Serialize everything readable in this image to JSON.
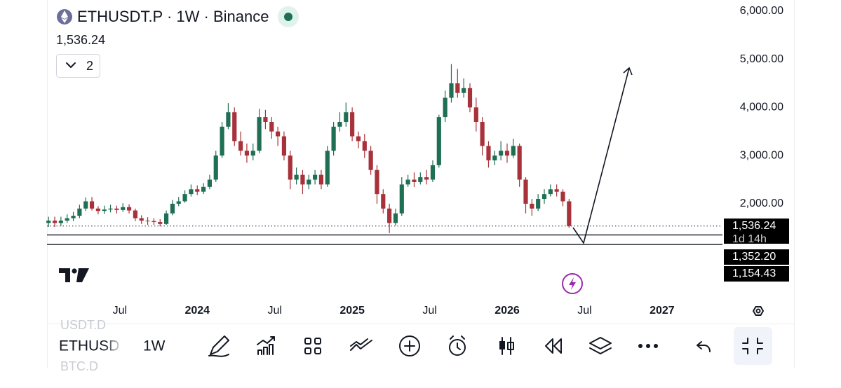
{
  "header": {
    "symbol": "ETHUSDT.P · 1W · Binance",
    "last_price": "1,536.24",
    "indicator_count": "2"
  },
  "chart_data": {
    "type": "candlestick",
    "x": [
      2023.04,
      2023.08,
      2023.12,
      2023.16,
      2023.2,
      2023.24,
      2023.28,
      2023.32,
      2023.36,
      2023.4,
      2023.44,
      2023.48,
      2023.52,
      2023.56,
      2023.6,
      2023.64,
      2023.68,
      2023.72,
      2023.76,
      2023.8,
      2023.84,
      2023.88,
      2023.92,
      2023.96,
      2024,
      2024.04,
      2024.08,
      2024.12,
      2024.16,
      2024.2,
      2024.24,
      2024.28,
      2024.32,
      2024.36,
      2024.4,
      2024.44,
      2024.48,
      2024.52,
      2024.56,
      2024.6,
      2024.64,
      2024.68,
      2024.72,
      2024.76,
      2024.8,
      2024.84,
      2024.88,
      2024.92,
      2024.96,
      2025,
      2025.04,
      2025.08,
      2025.12,
      2025.16,
      2025.2,
      2025.24,
      2025.28,
      2025.32,
      2025.36,
      2025.4,
      2025.44,
      2025.48,
      2025.52,
      2025.56,
      2025.6,
      2025.64,
      2025.68,
      2025.72,
      2025.76,
      2025.8,
      2025.84,
      2025.88,
      2025.92,
      2025.96,
      2026,
      2026.04,
      2026.08,
      2026.12,
      2026.16,
      2026.2,
      2026.24,
      2026.28,
      2026.32,
      2026.36,
      2026.4
    ],
    "open": [
      1600,
      1650,
      1600,
      1650,
      1700,
      1750,
      1900,
      2050,
      1900,
      1850,
      1880,
      1900,
      1870,
      1930,
      1860,
      1700,
      1650,
      1640,
      1620,
      1580,
      1800,
      2000,
      2050,
      2200,
      2300,
      2250,
      2350,
      2500,
      3000,
      3600,
      3900,
      3300,
      3100,
      3000,
      3100,
      3800,
      3700,
      3500,
      3400,
      3000,
      2500,
      2600,
      2400,
      2500,
      2600,
      2400,
      3100,
      3600,
      3700,
      3900,
      3400,
      3300,
      3100,
      2700,
      2200,
      1900,
      1600,
      1800,
      2400,
      2500,
      2450,
      2550,
      2500,
      2800,
      3800,
      4200,
      4500,
      4300,
      4400,
      4000,
      3700,
      3200,
      2900,
      3000,
      3100,
      3000,
      3200,
      2500,
      2000,
      1900,
      2100,
      2200,
      2300,
      2250,
      2050
    ],
    "high": [
      1730,
      1730,
      1730,
      1780,
      1830,
      1980,
      2130,
      2140,
      1950,
      1960,
      1980,
      1960,
      2010,
      1990,
      1900,
      1760,
      1720,
      1700,
      1680,
      1860,
      2080,
      2140,
      2280,
      2400,
      2380,
      2430,
      2600,
      3100,
      3700,
      4090,
      4000,
      3500,
      3250,
      3250,
      3970,
      3950,
      3800,
      3600,
      3500,
      3100,
      2750,
      2700,
      2600,
      2700,
      2700,
      3200,
      3700,
      3900,
      4100,
      4000,
      3500,
      3450,
      3200,
      2800,
      2300,
      2000,
      1900,
      2550,
      2600,
      2650,
      2650,
      2700,
      2900,
      3850,
      4350,
      4900,
      4800,
      4600,
      4500,
      4200,
      3800,
      3300,
      3100,
      3300,
      3250,
      3350,
      3250,
      2550,
      2100,
      2200,
      2300,
      2400,
      2400,
      2300,
      2100
    ],
    "low": [
      1520,
      1520,
      1540,
      1600,
      1640,
      1700,
      1850,
      1860,
      1780,
      1790,
      1820,
      1800,
      1830,
      1800,
      1640,
      1580,
      1560,
      1560,
      1530,
      1560,
      1760,
      1950,
      2020,
      2150,
      2180,
      2200,
      2300,
      2450,
      2950,
      3550,
      3200,
      3000,
      2850,
      2900,
      3050,
      3550,
      3350,
      3200,
      2900,
      2300,
      2400,
      2200,
      2300,
      2400,
      2300,
      2350,
      3000,
      3500,
      3600,
      3300,
      3150,
      2950,
      2600,
      2000,
      1800,
      1390,
      1550,
      1750,
      2350,
      2350,
      2400,
      2400,
      2450,
      2750,
      3700,
      4100,
      4200,
      4200,
      3900,
      3500,
      3000,
      2750,
      2800,
      2900,
      2850,
      2950,
      2350,
      1800,
      1750,
      1850,
      2000,
      2150,
      2150,
      1950,
      1500
    ],
    "close": [
      1650,
      1600,
      1650,
      1700,
      1750,
      1900,
      2050,
      1900,
      1850,
      1880,
      1900,
      1870,
      1930,
      1860,
      1700,
      1650,
      1640,
      1620,
      1580,
      1800,
      2000,
      2050,
      2200,
      2300,
      2250,
      2350,
      2500,
      3000,
      3600,
      3900,
      3300,
      3100,
      3000,
      3100,
      3800,
      3700,
      3500,
      3400,
      3000,
      2500,
      2600,
      2400,
      2500,
      2600,
      2400,
      3100,
      3600,
      3700,
      3900,
      3400,
      3300,
      3100,
      2700,
      2200,
      1900,
      1600,
      1800,
      2400,
      2500,
      2450,
      2550,
      2500,
      2800,
      3800,
      4200,
      4500,
      4300,
      4400,
      4000,
      3700,
      3200,
      2900,
      3000,
      3100,
      3000,
      3200,
      2500,
      2000,
      1900,
      2100,
      2200,
      2300,
      2250,
      2050,
      1536.24
    ],
    "up_color": "#1f6f54",
    "down_color": "#a8323a",
    "xlim": [
      2023.03,
      2027.39
    ],
    "xticks": [
      {
        "value": 2023.5,
        "label": "Jul"
      },
      2024,
      {
        "value": 2024.5,
        "label": "Jul"
      },
      2025,
      {
        "value": 2025.5,
        "label": "Jul"
      },
      2026,
      {
        "value": 2026.5,
        "label": "Jul"
      },
      2027
    ],
    "ylim": [
      50,
      6230
    ],
    "yticks": [
      {
        "value": 2000,
        "label": "2,000.00"
      },
      {
        "value": 3000,
        "label": "3,000.00"
      },
      {
        "value": 4000,
        "label": "4,000.00"
      },
      {
        "value": 5000,
        "label": "5,000.00"
      },
      {
        "value": 6000,
        "label": "6,000.00"
      }
    ],
    "price_lines": [
      {
        "value": 1536.24,
        "label": "1,536.24",
        "countdown": "1d 14h",
        "style": "dotted"
      },
      {
        "value": 1352.2,
        "label": "1,352.20",
        "style": "solid"
      },
      {
        "value": 1154.43,
        "label": "1,154.43",
        "style": "solid"
      }
    ]
  },
  "toolbar": {
    "symbol": "ETHUSD",
    "interval": "1W",
    "symbol_above": "USDT.D",
    "symbol_below": "BTC.D"
  }
}
